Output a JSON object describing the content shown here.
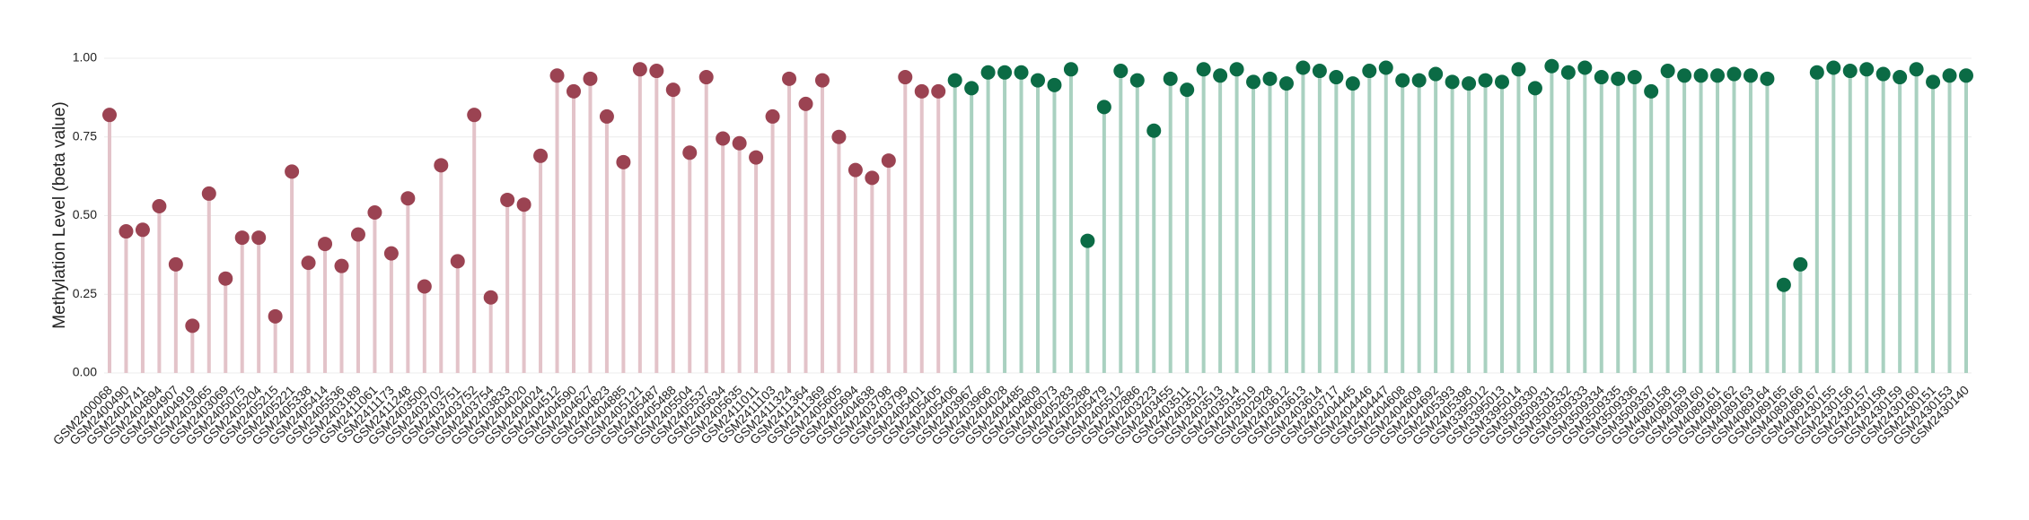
{
  "chart_data": {
    "type": "lollipop",
    "y_label": "Methylation Level (beta value)",
    "categories": [
      "GSM2400068",
      "GSM2400490",
      "GSM2404741",
      "GSM2404894",
      "GSM2404907",
      "GSM2404919",
      "GSM2403065",
      "GSM2403069",
      "GSM2405075",
      "GSM2405204",
      "GSM2405215",
      "GSM2405221",
      "GSM2405338",
      "GSM2405414",
      "GSM2405536",
      "GSM2403189",
      "GSM2411061",
      "GSM2411173",
      "GSM2411248",
      "GSM2403500",
      "GSM2403702",
      "GSM2403751",
      "GSM2403752",
      "GSM2403754",
      "GSM2403833",
      "GSM2404020",
      "GSM2404024",
      "GSM2404512",
      "GSM2404590",
      "GSM2404627",
      "GSM2404823",
      "GSM2404885",
      "GSM2405121",
      "GSM2405487",
      "GSM2405488",
      "GSM2405504",
      "GSM2405537",
      "GSM2405634",
      "GSM2405635",
      "GSM2411011",
      "GSM2411103",
      "GSM2411324",
      "GSM2411364",
      "GSM2411369",
      "GSM2405605",
      "GSM2405694",
      "GSM2404638",
      "GSM2403798",
      "GSM2403799",
      "GSM2405401",
      "GSM2405405",
      "GSM2405406",
      "GSM2403967",
      "GSM2403966",
      "GSM2404028",
      "GSM2404485",
      "GSM2404809",
      "GSM2406073",
      "GSM2405283",
      "GSM2405288",
      "GSM2405479",
      "GSM2405512",
      "GSM2402886",
      "GSM2403223",
      "GSM2403455",
      "GSM2403511",
      "GSM2403512",
      "GSM2403513",
      "GSM2403514",
      "GSM2403519",
      "GSM2402928",
      "GSM2403612",
      "GSM2403613",
      "GSM2403614",
      "GSM2403717",
      "GSM2404445",
      "GSM2404446",
      "GSM2404447",
      "GSM2404608",
      "GSM2404609",
      "GSM2404692",
      "GSM2405393",
      "GSM2405398",
      "GSM3395012",
      "GSM3395013",
      "GSM3395014",
      "GSM3509330",
      "GSM3509331",
      "GSM3509332",
      "GSM3509333",
      "GSM3509334",
      "GSM3509335",
      "GSM3509336",
      "GSM3509337",
      "GSM4089158",
      "GSM4089159",
      "GSM4089160",
      "GSM4089161",
      "GSM4089162",
      "GSM4089163",
      "GSM4089164",
      "GSM4089165",
      "GSM4089166",
      "GSM4089167",
      "GSM2430155",
      "GSM2430156",
      "GSM2430157",
      "GSM2430158",
      "GSM2430159",
      "GSM2430160",
      "GSM2430151",
      "GSM2430153",
      "GSM2430140"
    ],
    "series": [
      {
        "color": "#9b4352",
        "stem_color": "#e3c3c9",
        "values": [
          0.82,
          0.45,
          0.455,
          0.53,
          0.345,
          0.15,
          0.57,
          0.3,
          0.43,
          0.43,
          0.18,
          0.64,
          0.35,
          0.41,
          0.34,
          0.44,
          0.51,
          0.38,
          0.555,
          0.275,
          0.66,
          0.355,
          0.82,
          0.24,
          0.55,
          0.535,
          0.69,
          0.945,
          0.895,
          0.935,
          0.815,
          0.67,
          0.965,
          0.96,
          0.9,
          0.7,
          0.94,
          0.745,
          0.73,
          0.685,
          0.815,
          0.935,
          0.855,
          0.93,
          0.75,
          0.645,
          0.62,
          0.675,
          0.94,
          0.895,
          0.895,
          null,
          null,
          null,
          null,
          null,
          null,
          null,
          null,
          null,
          null,
          null,
          null,
          null,
          null,
          null,
          null,
          null,
          null,
          null,
          null,
          null,
          null,
          null,
          null,
          null,
          null,
          null,
          null,
          null,
          null,
          null,
          null,
          null,
          null,
          null,
          null,
          null,
          null,
          null,
          null,
          null,
          null,
          null,
          null,
          null,
          null,
          null,
          null,
          null,
          null,
          null,
          null,
          null,
          null,
          null,
          null,
          null,
          null,
          null,
          null,
          null,
          null
        ]
      },
      {
        "color": "#0b6b45",
        "stem_color": "#a9d1c0",
        "values": [
          null,
          null,
          null,
          null,
          null,
          null,
          null,
          null,
          null,
          null,
          null,
          null,
          null,
          null,
          null,
          null,
          null,
          null,
          null,
          null,
          null,
          null,
          null,
          null,
          null,
          null,
          null,
          null,
          null,
          null,
          null,
          null,
          null,
          null,
          null,
          null,
          null,
          null,
          null,
          null,
          null,
          null,
          null,
          null,
          null,
          null,
          null,
          null,
          null,
          null,
          null,
          0.93,
          0.905,
          0.955,
          0.955,
          0.955,
          0.93,
          0.915,
          0.965,
          0.42,
          0.845,
          0.96,
          0.93,
          0.77,
          0.935,
          0.9,
          0.965,
          0.945,
          0.965,
          0.925,
          0.935,
          0.92,
          0.97,
          0.96,
          0.94,
          0.92,
          0.96,
          0.97,
          0.93,
          0.93,
          0.95,
          0.925,
          0.92,
          0.93,
          0.925,
          0.965,
          0.905,
          0.975,
          0.955,
          0.97,
          0.94,
          0.935,
          0.94,
          0.895,
          0.96,
          0.945,
          0.945,
          0.945,
          0.95,
          0.945,
          0.935,
          0.28,
          0.345,
          0.955,
          0.97,
          0.96,
          0.965,
          0.95,
          0.94,
          0.965,
          0.925,
          0.945,
          0.945
        ]
      }
    ],
    "ylim": [
      0,
      1
    ],
    "yticks": [
      {
        "value": 0,
        "label": "0.00"
      },
      {
        "value": 0.25,
        "label": "0.25"
      },
      {
        "value": 0.5,
        "label": "0.50"
      },
      {
        "value": 0.75,
        "label": "0.75"
      },
      {
        "value": 1,
        "label": "1.00"
      }
    ],
    "grid": true
  }
}
